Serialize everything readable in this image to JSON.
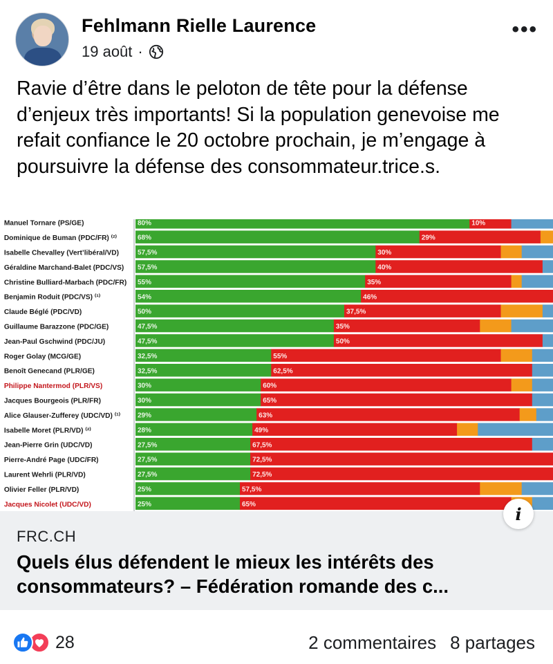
{
  "post": {
    "author": "Fehlmann Rielle Laurence",
    "date": "19 août",
    "separator": "·",
    "privacy_icon": "globe-icon",
    "more_icon": "more-dots-icon",
    "more_label": "•••",
    "text": "Ravie d’être dans le peloton de tête pour la défense d’enjeux très importants! Si la population genevoise me refait confiance le 20 octobre prochain, je m’engage à poursuivre la défense des consommateur.trice.s."
  },
  "link": {
    "domain": "FRC.CH",
    "title": "Quels élus défendent le mieux les intérêts des consommateurs? – Fédération romande des c...",
    "info_label": "i"
  },
  "footer": {
    "reaction_count": "28",
    "comments": "2 commentaires",
    "shares": "8 partages"
  },
  "colors": {
    "green": "#3aa62f",
    "red": "#e1201f",
    "orange": "#f39a1b",
    "blue": "#5e9ec9",
    "highlight_name": "#c3161c"
  },
  "chart_data": {
    "type": "bar",
    "stacked": true,
    "orientation": "horizontal",
    "series": [
      {
        "name": "",
        "color": "green"
      },
      {
        "name": "",
        "color": "red"
      },
      {
        "name": "",
        "color": "orange"
      },
      {
        "name": "",
        "color": "blue"
      }
    ],
    "rows": [
      {
        "name": "Manuel Tornare (PS/GE)",
        "values": [
          80,
          10,
          0,
          10
        ],
        "labels": [
          "80%",
          "10%"
        ],
        "highlight": false
      },
      {
        "name": "Dominique de Buman (PDC/FR) ⁽²⁾",
        "values": [
          68,
          29,
          3,
          0
        ],
        "labels": [
          "68%",
          "29%"
        ],
        "highlight": false
      },
      {
        "name": "Isabelle Chevalley (Vert’libéral/VD)",
        "values": [
          57.5,
          30,
          5,
          7.5
        ],
        "labels": [
          "57,5%",
          "30%"
        ],
        "highlight": false
      },
      {
        "name": "Géraldine Marchand-Balet (PDC/VS)",
        "values": [
          57.5,
          40,
          0,
          2.5
        ],
        "labels": [
          "57,5%",
          "40%"
        ],
        "highlight": false
      },
      {
        "name": "Christine Bulliard-Marbach (PDC/FR)",
        "values": [
          55,
          35,
          2.5,
          7.5
        ],
        "labels": [
          "55%",
          "35%"
        ],
        "highlight": false
      },
      {
        "name": "Benjamin Roduit (PDC/VS) ⁽¹⁾",
        "values": [
          54,
          46,
          0,
          0
        ],
        "labels": [
          "54%",
          "46%"
        ],
        "highlight": false
      },
      {
        "name": "Claude Béglé (PDC/VD)",
        "values": [
          50,
          37.5,
          10,
          2.5
        ],
        "labels": [
          "50%",
          "37,5%"
        ],
        "highlight": false
      },
      {
        "name": "Guillaume Barazzone (PDC/GE)",
        "values": [
          47.5,
          35,
          7.5,
          10
        ],
        "labels": [
          "47,5%",
          "35%"
        ],
        "highlight": false
      },
      {
        "name": "Jean-Paul Gschwind (PDC/JU)",
        "values": [
          47.5,
          50,
          0,
          2.5
        ],
        "labels": [
          "47,5%",
          "50%"
        ],
        "highlight": false
      },
      {
        "name": "Roger Golay (MCG/GE)",
        "values": [
          32.5,
          55,
          7.5,
          5
        ],
        "labels": [
          "32,5%",
          "55%"
        ],
        "highlight": false
      },
      {
        "name": "Benoît Genecand (PLR/GE)",
        "values": [
          32.5,
          62.5,
          0,
          5
        ],
        "labels": [
          "32,5%",
          "62,5%"
        ],
        "highlight": false
      },
      {
        "name": "Philippe Nantermod (PLR/VS)",
        "values": [
          30,
          60,
          5,
          5
        ],
        "labels": [
          "30%",
          "60%"
        ],
        "highlight": true
      },
      {
        "name": "Jacques Bourgeois (PLR/FR)",
        "values": [
          30,
          65,
          0,
          5
        ],
        "labels": [
          "30%",
          "65%"
        ],
        "highlight": false
      },
      {
        "name": "Alice Glauser-Zufferey (UDC/VD) ⁽¹⁾",
        "values": [
          29,
          63,
          4,
          4
        ],
        "labels": [
          "29%",
          "63%"
        ],
        "highlight": false
      },
      {
        "name": "Isabelle Moret (PLR/VD) ⁽²⁾",
        "values": [
          28,
          49,
          5,
          18
        ],
        "labels": [
          "28%",
          "49%"
        ],
        "highlight": false
      },
      {
        "name": "Jean-Pierre Grin (UDC/VD)",
        "values": [
          27.5,
          67.5,
          0,
          5
        ],
        "labels": [
          "27,5%",
          "67,5%"
        ],
        "highlight": false
      },
      {
        "name": "Pierre-André Page (UDC/FR)",
        "values": [
          27.5,
          72.5,
          0,
          0
        ],
        "labels": [
          "27,5%",
          "72,5%"
        ],
        "highlight": false
      },
      {
        "name": "Laurent Wehrli (PLR/VD)",
        "values": [
          27.5,
          72.5,
          0,
          0
        ],
        "labels": [
          "27,5%",
          "72,5%"
        ],
        "highlight": false
      },
      {
        "name": "Olivier Feller (PLR/VD)",
        "values": [
          25,
          57.5,
          10,
          7.5
        ],
        "labels": [
          "25%",
          "57,5%"
        ],
        "highlight": false
      },
      {
        "name": "Jacques Nicolet (UDC/VD)",
        "values": [
          25,
          65,
          5,
          5
        ],
        "labels": [
          "25%",
          "65%"
        ],
        "highlight": true
      }
    ],
    "xlim": [
      0,
      100
    ],
    "grid": false,
    "legend": "none"
  }
}
